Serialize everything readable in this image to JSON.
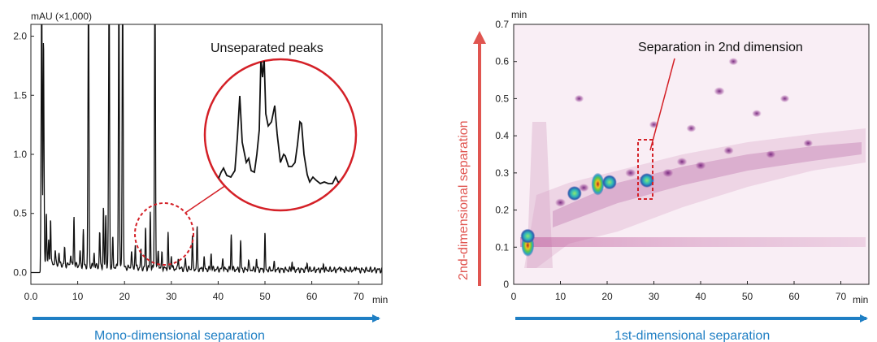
{
  "left_chart": {
    "y_unit": "mAU (×1,000)",
    "x_unit": "min",
    "annotation": "Unseparated peaks",
    "caption": "Mono-dimensional separation",
    "caption_color": "#1f7fc4",
    "inset_color": "#d42027"
  },
  "right_chart": {
    "y_unit": "min",
    "x_unit": "min",
    "annotation": "Separation in 2nd dimension",
    "x_caption": "1st-dimensional separation",
    "y_caption": "2nd-dimensional separation",
    "x_caption_color": "#1f7fc4",
    "y_caption_color": "#e05550",
    "highlight_color": "#d42027"
  },
  "chart_data": [
    {
      "type": "line",
      "xlabel": "min",
      "ylabel": "mAU (×1,000)",
      "xlim": [
        0,
        75
      ],
      "ylim": [
        -0.1,
        2.1
      ],
      "xticks": [
        "0.0",
        "10",
        "20",
        "30",
        "40",
        "50",
        "60",
        "70"
      ],
      "yticks": [
        "0.0",
        "0.5",
        "1.0",
        "1.5",
        "2.0"
      ],
      "peaks": [
        {
          "x": 2.3,
          "y": 2.5
        },
        {
          "x": 2.7,
          "y": 1.9
        },
        {
          "x": 3.3,
          "y": 0.45
        },
        {
          "x": 3.8,
          "y": 0.2
        },
        {
          "x": 4.2,
          "y": 0.4
        },
        {
          "x": 5.2,
          "y": 0.12
        },
        {
          "x": 6.0,
          "y": 0.1
        },
        {
          "x": 7.2,
          "y": 0.14
        },
        {
          "x": 8.5,
          "y": 0.1
        },
        {
          "x": 9.2,
          "y": 0.42
        },
        {
          "x": 10.5,
          "y": 0.12
        },
        {
          "x": 11.2,
          "y": 0.3
        },
        {
          "x": 12.3,
          "y": 2.5
        },
        {
          "x": 13.5,
          "y": 0.12
        },
        {
          "x": 14.7,
          "y": 0.3
        },
        {
          "x": 15.5,
          "y": 0.5
        },
        {
          "x": 16.0,
          "y": 0.45
        },
        {
          "x": 16.7,
          "y": 2.5
        },
        {
          "x": 17.5,
          "y": 0.25
        },
        {
          "x": 18.8,
          "y": 2.5
        },
        {
          "x": 19.6,
          "y": 2.5
        },
        {
          "x": 21.5,
          "y": 0.15
        },
        {
          "x": 22.3,
          "y": 0.2
        },
        {
          "x": 23.5,
          "y": 0.15
        },
        {
          "x": 24.5,
          "y": 0.34
        },
        {
          "x": 25.5,
          "y": 0.48
        },
        {
          "x": 26.5,
          "y": 2.5
        },
        {
          "x": 27.2,
          "y": 0.17
        },
        {
          "x": 28.0,
          "y": 0.14
        },
        {
          "x": 29.3,
          "y": 0.3
        },
        {
          "x": 30.0,
          "y": 0.12
        },
        {
          "x": 31.5,
          "y": 0.1
        },
        {
          "x": 33.0,
          "y": 0.09
        },
        {
          "x": 34.5,
          "y": 0.28
        },
        {
          "x": 35.5,
          "y": 0.35
        },
        {
          "x": 37.0,
          "y": 0.1
        },
        {
          "x": 38.5,
          "y": 0.14
        },
        {
          "x": 41.0,
          "y": 0.1
        },
        {
          "x": 42.8,
          "y": 0.3
        },
        {
          "x": 44.8,
          "y": 0.24
        },
        {
          "x": 46.5,
          "y": 0.08
        },
        {
          "x": 48.2,
          "y": 0.09
        },
        {
          "x": 50.0,
          "y": 0.3
        },
        {
          "x": 52.0,
          "y": 0.06
        },
        {
          "x": 55.8,
          "y": 0.07
        },
        {
          "x": 59.0,
          "y": 0.06
        },
        {
          "x": 62.5,
          "y": 0.05
        },
        {
          "x": 66.0,
          "y": 0.04
        },
        {
          "x": 69.5,
          "y": 0.04
        }
      ]
    },
    {
      "type": "heatmap",
      "xlabel": "min",
      "ylabel": "min",
      "xlim": [
        0,
        76
      ],
      "ylim": [
        0,
        0.7
      ],
      "xticks": [
        "0",
        "10",
        "20",
        "30",
        "40",
        "50",
        "60",
        "70"
      ],
      "yticks": [
        "0",
        "0.1",
        "0.2",
        "0.3",
        "0.4",
        "0.5",
        "0.6",
        "0.7"
      ],
      "spots": [
        {
          "x": 3.0,
          "y": 0.105,
          "i": 1.0
        },
        {
          "x": 3.0,
          "y": 0.13,
          "i": 0.8
        },
        {
          "x": 13.0,
          "y": 0.245,
          "i": 0.7
        },
        {
          "x": 18.0,
          "y": 0.27,
          "i": 1.0
        },
        {
          "x": 20.5,
          "y": 0.275,
          "i": 0.85
        },
        {
          "x": 28.5,
          "y": 0.28,
          "i": 0.75
        },
        {
          "x": 10.0,
          "y": 0.22,
          "i": 0.4
        },
        {
          "x": 15.0,
          "y": 0.26,
          "i": 0.35
        },
        {
          "x": 25.0,
          "y": 0.3,
          "i": 0.4
        },
        {
          "x": 33.0,
          "y": 0.3,
          "i": 0.4
        },
        {
          "x": 36.0,
          "y": 0.33,
          "i": 0.35
        },
        {
          "x": 40.0,
          "y": 0.32,
          "i": 0.35
        },
        {
          "x": 44.0,
          "y": 0.52,
          "i": 0.4
        },
        {
          "x": 46.0,
          "y": 0.36,
          "i": 0.3
        },
        {
          "x": 55.0,
          "y": 0.35,
          "i": 0.25
        },
        {
          "x": 63.0,
          "y": 0.38,
          "i": 0.2
        },
        {
          "x": 47.0,
          "y": 0.6,
          "i": 0.2
        },
        {
          "x": 52.0,
          "y": 0.46,
          "i": 0.2
        },
        {
          "x": 14.0,
          "y": 0.5,
          "i": 0.2
        },
        {
          "x": 30.0,
          "y": 0.43,
          "i": 0.2
        },
        {
          "x": 38.0,
          "y": 0.42,
          "i": 0.25
        },
        {
          "x": 58.0,
          "y": 0.5,
          "i": 0.2
        }
      ]
    }
  ]
}
